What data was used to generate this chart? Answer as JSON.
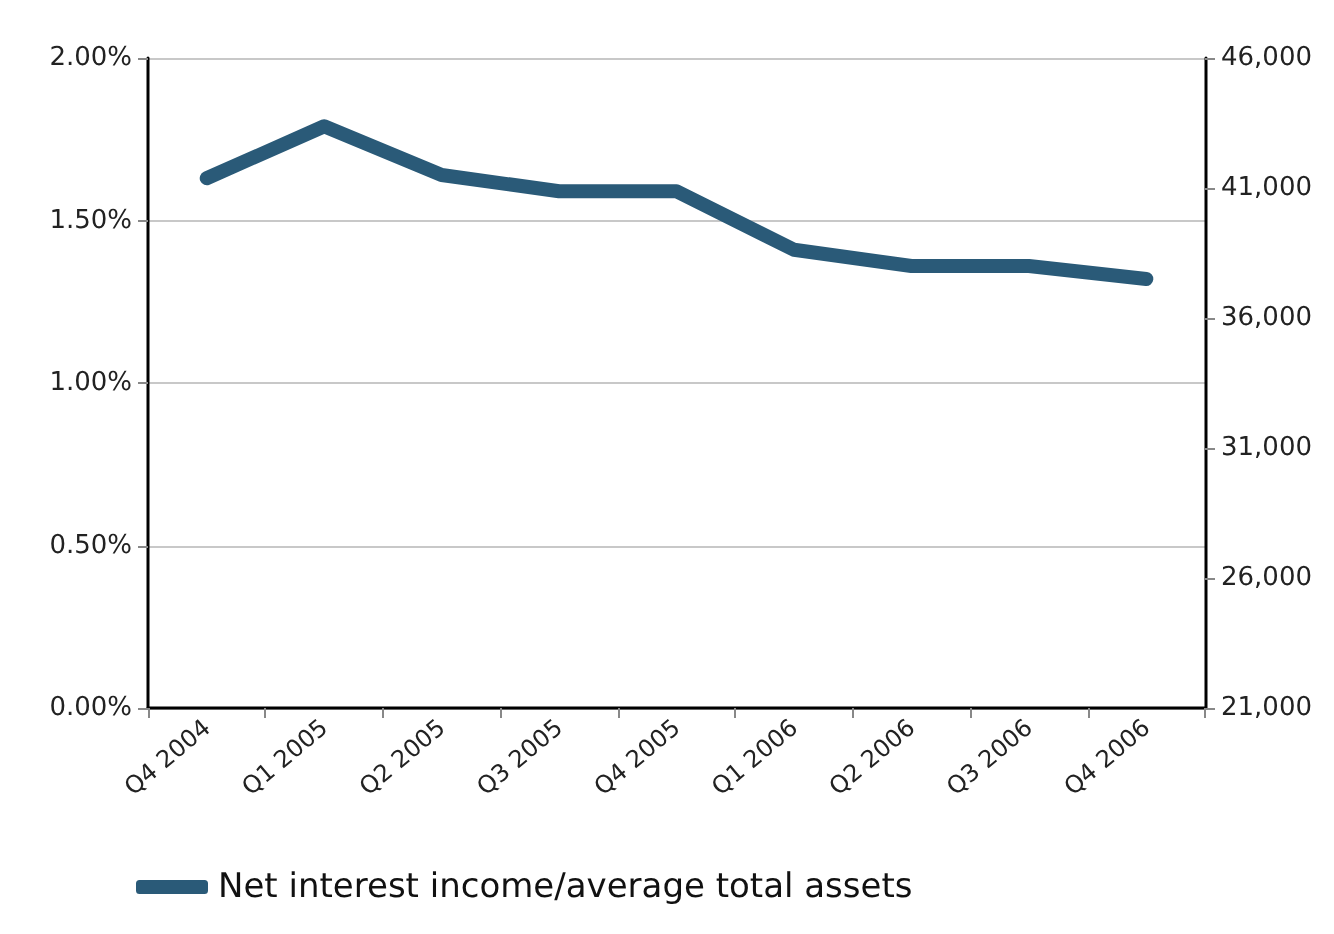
{
  "chart_data": {
    "type": "line",
    "categories": [
      "Q4 2004",
      "Q1 2005",
      "Q2 2005",
      "Q3 2005",
      "Q4 2005",
      "Q1 2006",
      "Q2 2006",
      "Q3 2006",
      "Q4 2006"
    ],
    "series": [
      {
        "name": "Net interest income/average total assets",
        "color": "#2a5a78",
        "values": [
          1.63,
          1.79,
          1.64,
          1.59,
          1.59,
          1.41,
          1.36,
          1.36,
          1.32
        ]
      }
    ],
    "ylim": [
      0,
      2
    ],
    "yticks": [
      {
        "value": 0,
        "label": "0.00%"
      },
      {
        "value": 0.5,
        "label": "0.50%"
      },
      {
        "value": 1,
        "label": "1.00%"
      },
      {
        "value": 1.5,
        "label": "1.50%"
      },
      {
        "value": 2,
        "label": "2.00%"
      }
    ],
    "y2lim": [
      21000,
      46000
    ],
    "y2ticks": [
      {
        "value": 21000,
        "label": "21,000"
      },
      {
        "value": 26000,
        "label": "26,000"
      },
      {
        "value": 31000,
        "label": "31,000"
      },
      {
        "value": 36000,
        "label": "36,000"
      },
      {
        "value": 41000,
        "label": "41,000"
      },
      {
        "value": 46000,
        "label": "46,000"
      }
    ],
    "grid": "y",
    "legend": "bottom",
    "line_style": "solid"
  }
}
